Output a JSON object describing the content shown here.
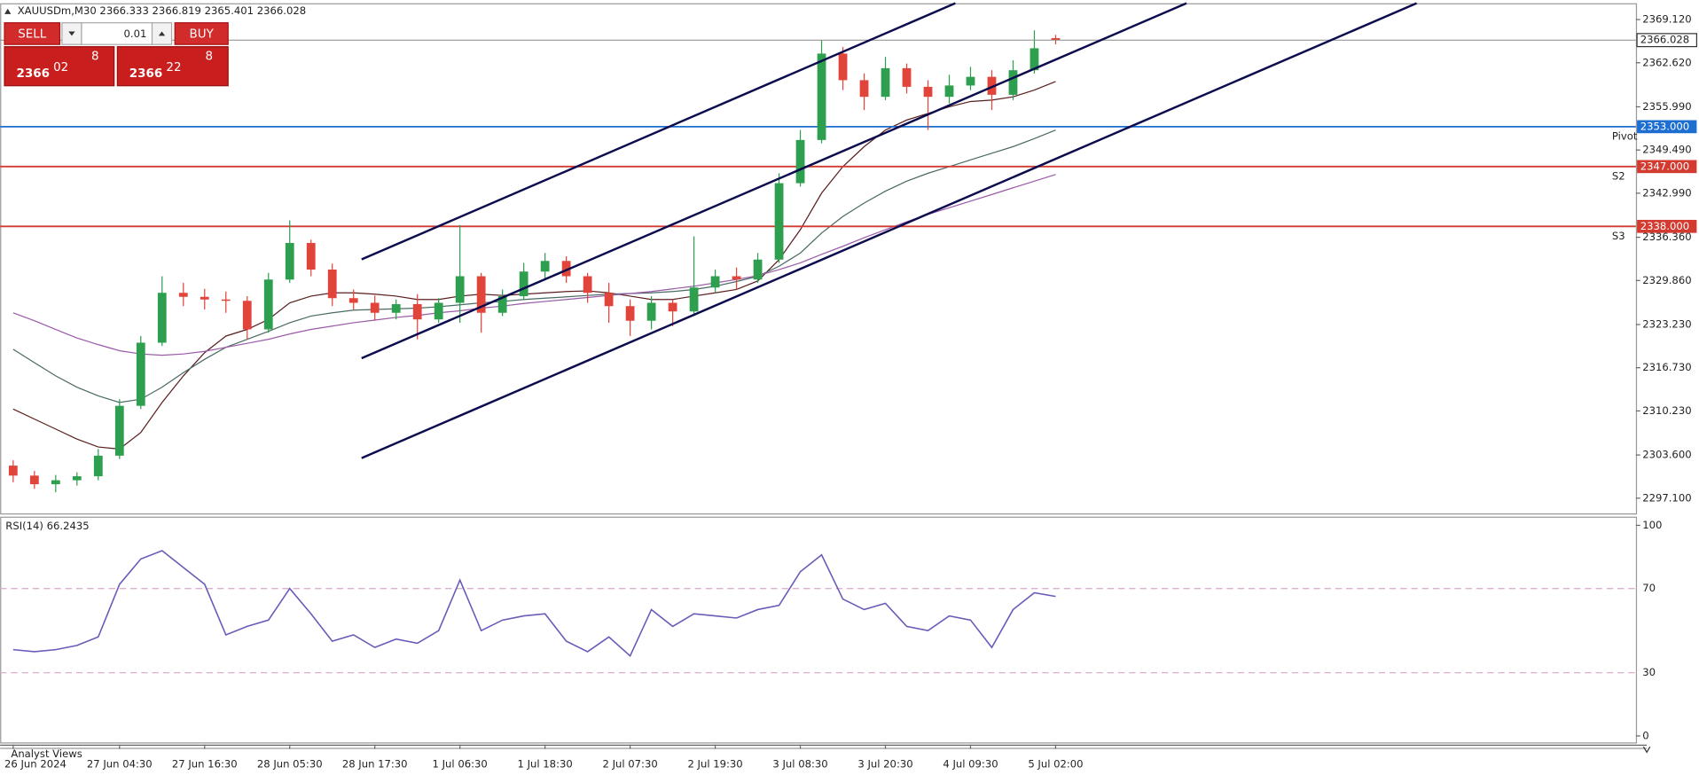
{
  "header": {
    "symbol": "XAUUSDm,M30"
  },
  "trade_panel": {
    "sell": "SELL",
    "buy": "BUY",
    "volume": "0.01",
    "sell_main": "2366",
    "sell_big": "02",
    "sell_sup": "8",
    "buy_main": "2366",
    "buy_big": "22",
    "buy_sup": "8"
  },
  "footer": {
    "tab": "Analyst Views"
  },
  "chart_data": [
    {
      "type": "candlestick",
      "categories": [
        "26 Jun 2024",
        null,
        null,
        null,
        null,
        "27 Jun 04:30",
        null,
        null,
        null,
        "27 Jun 16:30",
        null,
        null,
        null,
        "28 Jun 05:30",
        null,
        null,
        null,
        "28 Jun 17:30",
        null,
        null,
        null,
        "1 Jul 06:30",
        null,
        null,
        null,
        "1 Jul 18:30",
        null,
        null,
        null,
        "2 Jul 07:30",
        null,
        null,
        null,
        "2 Jul 19:30",
        null,
        null,
        null,
        "3 Jul 08:30",
        null,
        null,
        null,
        "3 Jul 20:30",
        null,
        null,
        null,
        "4 Jul 09:30",
        null,
        null,
        null,
        "5 Jul 02:00"
      ],
      "open": [
        2302.0,
        2300.5,
        2299.2,
        2299.8,
        2300.4,
        2303.5,
        2311.0,
        2320.5,
        2328.0,
        2327.4,
        2327.0,
        2326.8,
        2322.5,
        2330.0,
        2335.5,
        2331.5,
        2327.2,
        2326.5,
        2325.0,
        2326.3,
        2324.0,
        2326.5,
        2330.5,
        2325.0,
        2327.5,
        2331.2,
        2332.8,
        2330.5,
        2328.0,
        2326.0,
        2323.8,
        2326.5,
        2325.2,
        2328.8,
        2330.5,
        2330.0,
        2333.0,
        2344.5,
        2351.0,
        2364.0,
        2360.0,
        2357.5,
        2361.8,
        2359.0,
        2357.5,
        2359.2,
        2360.5,
        2357.8,
        2361.5,
        2366.333
      ],
      "high": [
        2302.8,
        2301.2,
        2300.6,
        2301.0,
        2304.5,
        2312.0,
        2321.5,
        2330.5,
        2329.5,
        2328.6,
        2328.2,
        2327.5,
        2331.0,
        2338.9,
        2336.0,
        2332.4,
        2328.5,
        2327.6,
        2327.0,
        2327.8,
        2327.2,
        2338.2,
        2331.0,
        2328.5,
        2332.5,
        2334.0,
        2333.5,
        2331.0,
        2329.5,
        2327.0,
        2327.5,
        2327.0,
        2336.5,
        2331.5,
        2331.8,
        2334.0,
        2346.0,
        2352.5,
        2366.0,
        2365.0,
        2361.0,
        2363.5,
        2362.5,
        2360.0,
        2360.8,
        2362.0,
        2361.5,
        2363.0,
        2367.5,
        2366.819
      ],
      "low": [
        2299.5,
        2298.5,
        2298.0,
        2299.0,
        2299.8,
        2303.0,
        2310.5,
        2320.0,
        2326.0,
        2325.5,
        2325.0,
        2321.0,
        2322.0,
        2329.5,
        2330.5,
        2326.0,
        2325.5,
        2323.8,
        2324.0,
        2321.0,
        2323.5,
        2323.5,
        2322.0,
        2324.5,
        2327.0,
        2330.0,
        2329.5,
        2326.5,
        2323.5,
        2321.5,
        2322.5,
        2323.0,
        2324.5,
        2328.0,
        2328.5,
        2329.5,
        2332.5,
        2344.0,
        2350.5,
        2358.5,
        2355.5,
        2357.0,
        2358.0,
        2352.5,
        2356.5,
        2358.5,
        2355.5,
        2357.0,
        2361.0,
        2365.401
      ],
      "close": [
        2300.5,
        2299.2,
        2299.8,
        2300.4,
        2303.5,
        2311.0,
        2320.5,
        2328.0,
        2327.4,
        2327.0,
        2326.8,
        2322.5,
        2330.0,
        2335.5,
        2331.5,
        2327.2,
        2326.5,
        2325.0,
        2326.3,
        2324.0,
        2326.5,
        2330.5,
        2325.0,
        2327.5,
        2331.2,
        2332.8,
        2330.5,
        2328.0,
        2326.0,
        2323.8,
        2326.5,
        2325.2,
        2328.8,
        2330.5,
        2330.0,
        2333.0,
        2344.5,
        2351.0,
        2364.0,
        2360.0,
        2357.5,
        2361.8,
        2359.0,
        2357.5,
        2359.2,
        2360.5,
        2357.8,
        2361.5,
        2364.8,
        2366.028
      ],
      "up_color": "#2e9e4f",
      "down_color": "#e0443a",
      "moving_averages": [
        {
          "color": "#5a1e1e",
          "values": [
            2310.5,
            2309.0,
            2307.5,
            2306.0,
            2304.8,
            2304.5,
            2307.0,
            2311.5,
            2315.5,
            2319.0,
            2321.5,
            2322.5,
            2324.0,
            2326.5,
            2327.5,
            2328.0,
            2328.0,
            2327.8,
            2327.5,
            2327.0,
            2327.0,
            2327.5,
            2327.8,
            2327.6,
            2327.8,
            2328.0,
            2328.2,
            2328.3,
            2328.0,
            2327.5,
            2327.0,
            2327.0,
            2327.5,
            2328.0,
            2328.5,
            2329.8,
            2333.0,
            2337.5,
            2343.0,
            2347.0,
            2350.0,
            2352.5,
            2354.0,
            2355.0,
            2356.0,
            2356.8,
            2357.0,
            2357.5,
            2358.5,
            2359.8
          ]
        },
        {
          "color": "#4a6a64",
          "values": [
            2319.5,
            2317.5,
            2315.5,
            2313.8,
            2312.5,
            2311.5,
            2312.0,
            2313.8,
            2316.0,
            2318.0,
            2319.8,
            2321.0,
            2322.2,
            2323.5,
            2324.5,
            2325.0,
            2325.4,
            2325.5,
            2325.6,
            2325.7,
            2325.9,
            2326.2,
            2326.5,
            2326.7,
            2327.0,
            2327.2,
            2327.4,
            2327.6,
            2327.8,
            2327.9,
            2328.0,
            2328.2,
            2328.5,
            2329.0,
            2329.7,
            2330.5,
            2332.0,
            2334.0,
            2337.0,
            2339.5,
            2341.5,
            2343.3,
            2344.8,
            2346.0,
            2347.0,
            2348.0,
            2349.0,
            2350.0,
            2351.2,
            2352.5
          ]
        },
        {
          "color": "#9a5aa8",
          "values": [
            2325.0,
            2323.8,
            2322.5,
            2321.2,
            2320.2,
            2319.3,
            2318.8,
            2318.6,
            2318.8,
            2319.2,
            2319.8,
            2320.4,
            2321.0,
            2321.8,
            2322.5,
            2323.0,
            2323.5,
            2323.9,
            2324.3,
            2324.6,
            2325.0,
            2325.3,
            2325.7,
            2326.0,
            2326.4,
            2326.7,
            2327.0,
            2327.3,
            2327.6,
            2327.9,
            2328.2,
            2328.6,
            2329.0,
            2329.5,
            2330.0,
            2330.6,
            2331.5,
            2332.5,
            2333.8,
            2335.0,
            2336.3,
            2337.5,
            2338.7,
            2339.8,
            2340.8,
            2341.8,
            2342.8,
            2343.8,
            2344.8,
            2345.8
          ]
        }
      ],
      "levels": [
        {
          "name": "Pivot",
          "value": 2353,
          "label": "2353.000",
          "color": "#1c6fd1"
        },
        {
          "name": "S2",
          "value": 2347,
          "label": "2347.000",
          "color": "#d33a30"
        },
        {
          "name": "S3",
          "value": 2338,
          "label": "2338.000",
          "color": "#d33a30"
        }
      ],
      "ylim": [
        2294.81,
        2371.41
      ],
      "yticks": [
        {
          "value": 2369.12,
          "label": "2369.120"
        },
        {
          "value": 2362.62,
          "label": "2362.620"
        },
        {
          "value": 2355.99,
          "label": "2355.990"
        },
        {
          "value": 2349.49,
          "label": "2349.490"
        },
        {
          "value": 2342.99,
          "label": "2342.990"
        },
        {
          "value": 2336.36,
          "label": "2336.360"
        },
        {
          "value": 2329.86,
          "label": "2329.860"
        },
        {
          "value": 2323.23,
          "label": "2323.230"
        },
        {
          "value": 2316.73,
          "label": "2316.730"
        },
        {
          "value": 2310.23,
          "label": "2310.230"
        },
        {
          "value": 2303.6,
          "label": "2303.600"
        },
        {
          "value": 2297.1,
          "label": "2297.100"
        }
      ]
    },
    {
      "type": "line",
      "title": "RSI(14) 66.2435",
      "color": "#6a5bb8",
      "values": [
        41,
        40,
        41,
        43,
        47,
        72,
        84,
        88,
        80,
        72,
        48,
        52,
        55,
        70,
        58,
        45,
        48,
        42,
        46,
        44,
        50,
        74,
        50,
        55,
        57,
        58,
        45,
        40,
        47,
        38,
        60,
        52,
        58,
        57,
        56,
        60,
        62,
        78,
        86,
        65,
        60,
        63,
        52,
        50,
        57,
        55,
        42,
        60,
        68,
        66.2435
      ],
      "ylim": [
        0,
        100
      ],
      "yticks": [
        100,
        70,
        30,
        0
      ]
    }
  ]
}
